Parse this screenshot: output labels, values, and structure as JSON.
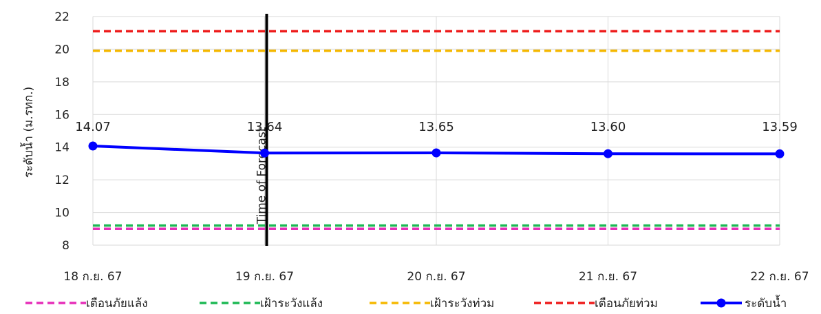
{
  "chart_data": {
    "type": "line",
    "title": "",
    "xlabel": "",
    "ylabel": "ระดับน้ำ (ม.รทก.)",
    "categories": [
      "18 ก.ย. 67",
      "19 ก.ย. 67",
      "20 ก.ย. 67",
      "21 ก.ย. 67",
      "22 ก.ย. 67"
    ],
    "ylim": [
      8,
      22
    ],
    "yticks": [
      8,
      10,
      12,
      14,
      16,
      18,
      20,
      22
    ],
    "grid": true,
    "legend_position": "bottom",
    "series": [
      {
        "name": "ระดับน้ำ",
        "values": [
          14.07,
          13.64,
          13.65,
          13.6,
          13.59
        ],
        "labels": [
          "14.07",
          "13.64",
          "13.65",
          "13.60",
          "13.59"
        ],
        "color": "#0000ff",
        "style": "solid",
        "markers": true
      }
    ],
    "thresholds": [
      {
        "name": "เตือนภัยแล้ง",
        "value": 9.0,
        "color": "#e62eb8",
        "style": "dashed"
      },
      {
        "name": "เฝ้าระวังแล้ง",
        "value": 9.2,
        "color": "#1db954",
        "style": "dashed"
      },
      {
        "name": "เฝ้าระวังท่วม",
        "value": 19.9,
        "color": "#f5b800",
        "style": "dashed"
      },
      {
        "name": "เตือนภัยท่วม",
        "value": 21.1,
        "color": "#ee1c1c",
        "style": "dashed"
      }
    ],
    "annotations": [
      {
        "text": "Time of Forecast",
        "x_category": "19 ก.ย. 67",
        "color": "#000000"
      }
    ],
    "legend_order": [
      "เตือนภัยแล้ง",
      "เฝ้าระวังแล้ง",
      "เฝ้าระวังท่วม",
      "เตือนภัยท่วม",
      "ระดับน้ำ"
    ]
  }
}
